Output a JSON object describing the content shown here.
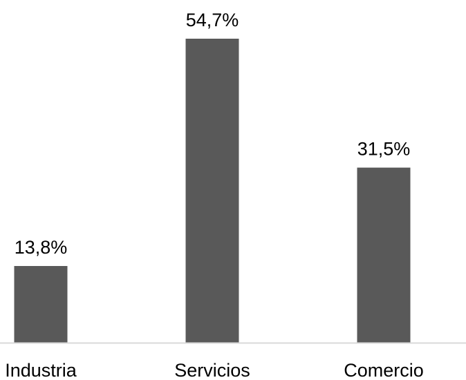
{
  "chart_data": {
    "type": "bar",
    "categories": [
      "Industria",
      "Servicios",
      "Comercio"
    ],
    "values": [
      13.8,
      54.7,
      31.5
    ],
    "data_labels": [
      "13,8%",
      "54,7%",
      "31,5%"
    ],
    "ylim": [
      0,
      54.7
    ],
    "grid": false,
    "legend": "none",
    "colors": {
      "bar": "#595959",
      "axis": "#d9d9d9"
    }
  }
}
